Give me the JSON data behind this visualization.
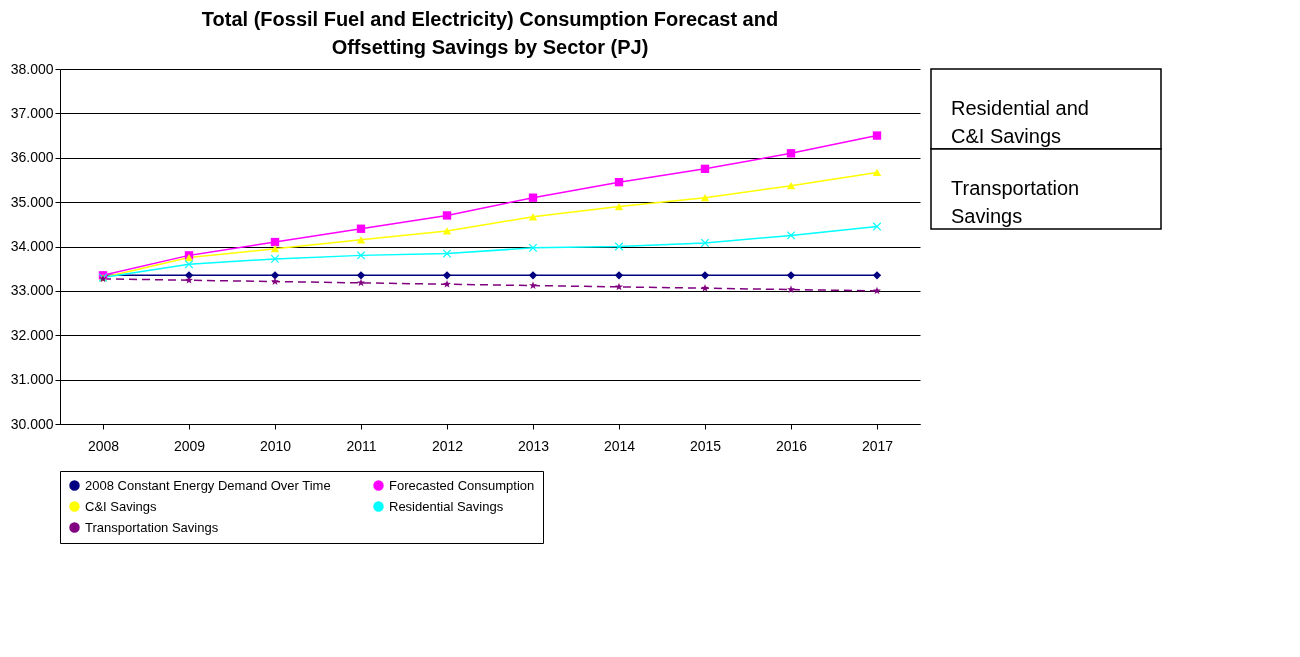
{
  "chart_data": {
    "type": "line",
    "title": "Total (Fossil Fuel and Electricity) Consumption Forecast and Offsetting Savings by Sector (PJ)",
    "categories": [
      "2008",
      "2009",
      "2010",
      "2011",
      "2012",
      "2013",
      "2014",
      "2015",
      "2016",
      "2017"
    ],
    "series": [
      {
        "name": "2008 Constant Energy Demand Over Time",
        "color": "#000080",
        "marker": "diamond",
        "line_style": "solid",
        "values": [
          33.35,
          33.35,
          33.35,
          33.35,
          33.35,
          33.35,
          33.35,
          33.35,
          33.35,
          33.35
        ]
      },
      {
        "name": "Forecasted Consumption",
        "color": "#ff00ff",
        "marker": "square",
        "line_style": "solid",
        "values": [
          33.35,
          33.8,
          34.1,
          34.4,
          34.7,
          35.1,
          35.45,
          35.75,
          36.1,
          36.5
        ]
      },
      {
        "name": "C&I Savings",
        "color": "#ffff00",
        "marker": "triangle",
        "line_style": "solid",
        "values": [
          33.3,
          33.75,
          33.95,
          34.15,
          34.35,
          34.67,
          34.9,
          35.1,
          35.37,
          35.67
        ]
      },
      {
        "name": "Residential Savings",
        "color": "#00ffff",
        "marker": "cross",
        "line_style": "solid",
        "values": [
          33.3,
          33.6,
          33.72,
          33.8,
          33.84,
          33.97,
          34.0,
          34.08,
          34.25,
          34.45
        ]
      },
      {
        "name": "Transportation Savings",
        "color": "#800080",
        "marker": "star",
        "line_style": "dashed",
        "values": [
          33.27,
          33.24,
          33.21,
          33.18,
          33.15,
          33.12,
          33.09,
          33.06,
          33.03,
          33.0
        ]
      }
    ],
    "ylim": [
      30,
      38
    ],
    "yticks": [
      {
        "value": 30,
        "label": "30.000"
      },
      {
        "value": 31,
        "label": "31.000"
      },
      {
        "value": 32,
        "label": "32.000"
      },
      {
        "value": 33,
        "label": "33.000"
      },
      {
        "value": 34,
        "label": "34.000"
      },
      {
        "value": 35,
        "label": "35.000"
      },
      {
        "value": 36,
        "label": "36.000"
      },
      {
        "value": 37,
        "label": "37.000"
      },
      {
        "value": 38,
        "label": "38.000"
      }
    ],
    "grid": "y",
    "legend": "bottom",
    "annotations": [
      "Residential and C&I Savings",
      "Transportation Savings"
    ]
  }
}
